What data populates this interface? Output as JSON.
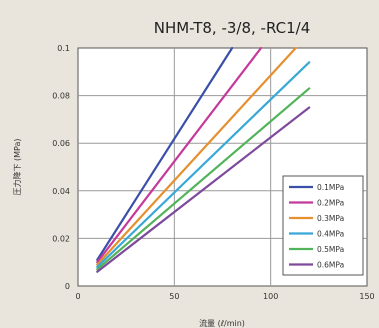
{
  "chart_data": {
    "type": "line",
    "title": "NHM-T8, -3/8, -RC1/4",
    "xlabel": "流量 (ℓ/min)",
    "ylabel": "圧力降下 (MPa)",
    "xlim": [
      0,
      150
    ],
    "ylim": [
      0,
      0.1
    ],
    "xticks": [
      "0",
      "50",
      "100",
      "150"
    ],
    "yticks": [
      "0",
      "0.02",
      "0.04",
      "0.06",
      "0.08",
      "0.1"
    ],
    "grid": true,
    "legend_position": "bottom-right",
    "series": [
      {
        "name": "0.1MPa",
        "color": "#3a4fa8",
        "x": [
          10,
          80
        ],
        "y": [
          0.011,
          0.1
        ]
      },
      {
        "name": "0.2MPa",
        "color": "#c4399a",
        "x": [
          10,
          95
        ],
        "y": [
          0.01,
          0.1
        ]
      },
      {
        "name": "0.3MPa",
        "color": "#e58f2e",
        "x": [
          10,
          113
        ],
        "y": [
          0.009,
          0.1
        ]
      },
      {
        "name": "0.4MPa",
        "color": "#38a8d6",
        "x": [
          10,
          120
        ],
        "y": [
          0.008,
          0.094
        ]
      },
      {
        "name": "0.5MPa",
        "color": "#52b35a",
        "x": [
          10,
          120
        ],
        "y": [
          0.007,
          0.083
        ]
      },
      {
        "name": "0.6MPa",
        "color": "#7d4a9c",
        "x": [
          10,
          120
        ],
        "y": [
          0.006,
          0.075
        ]
      }
    ]
  }
}
